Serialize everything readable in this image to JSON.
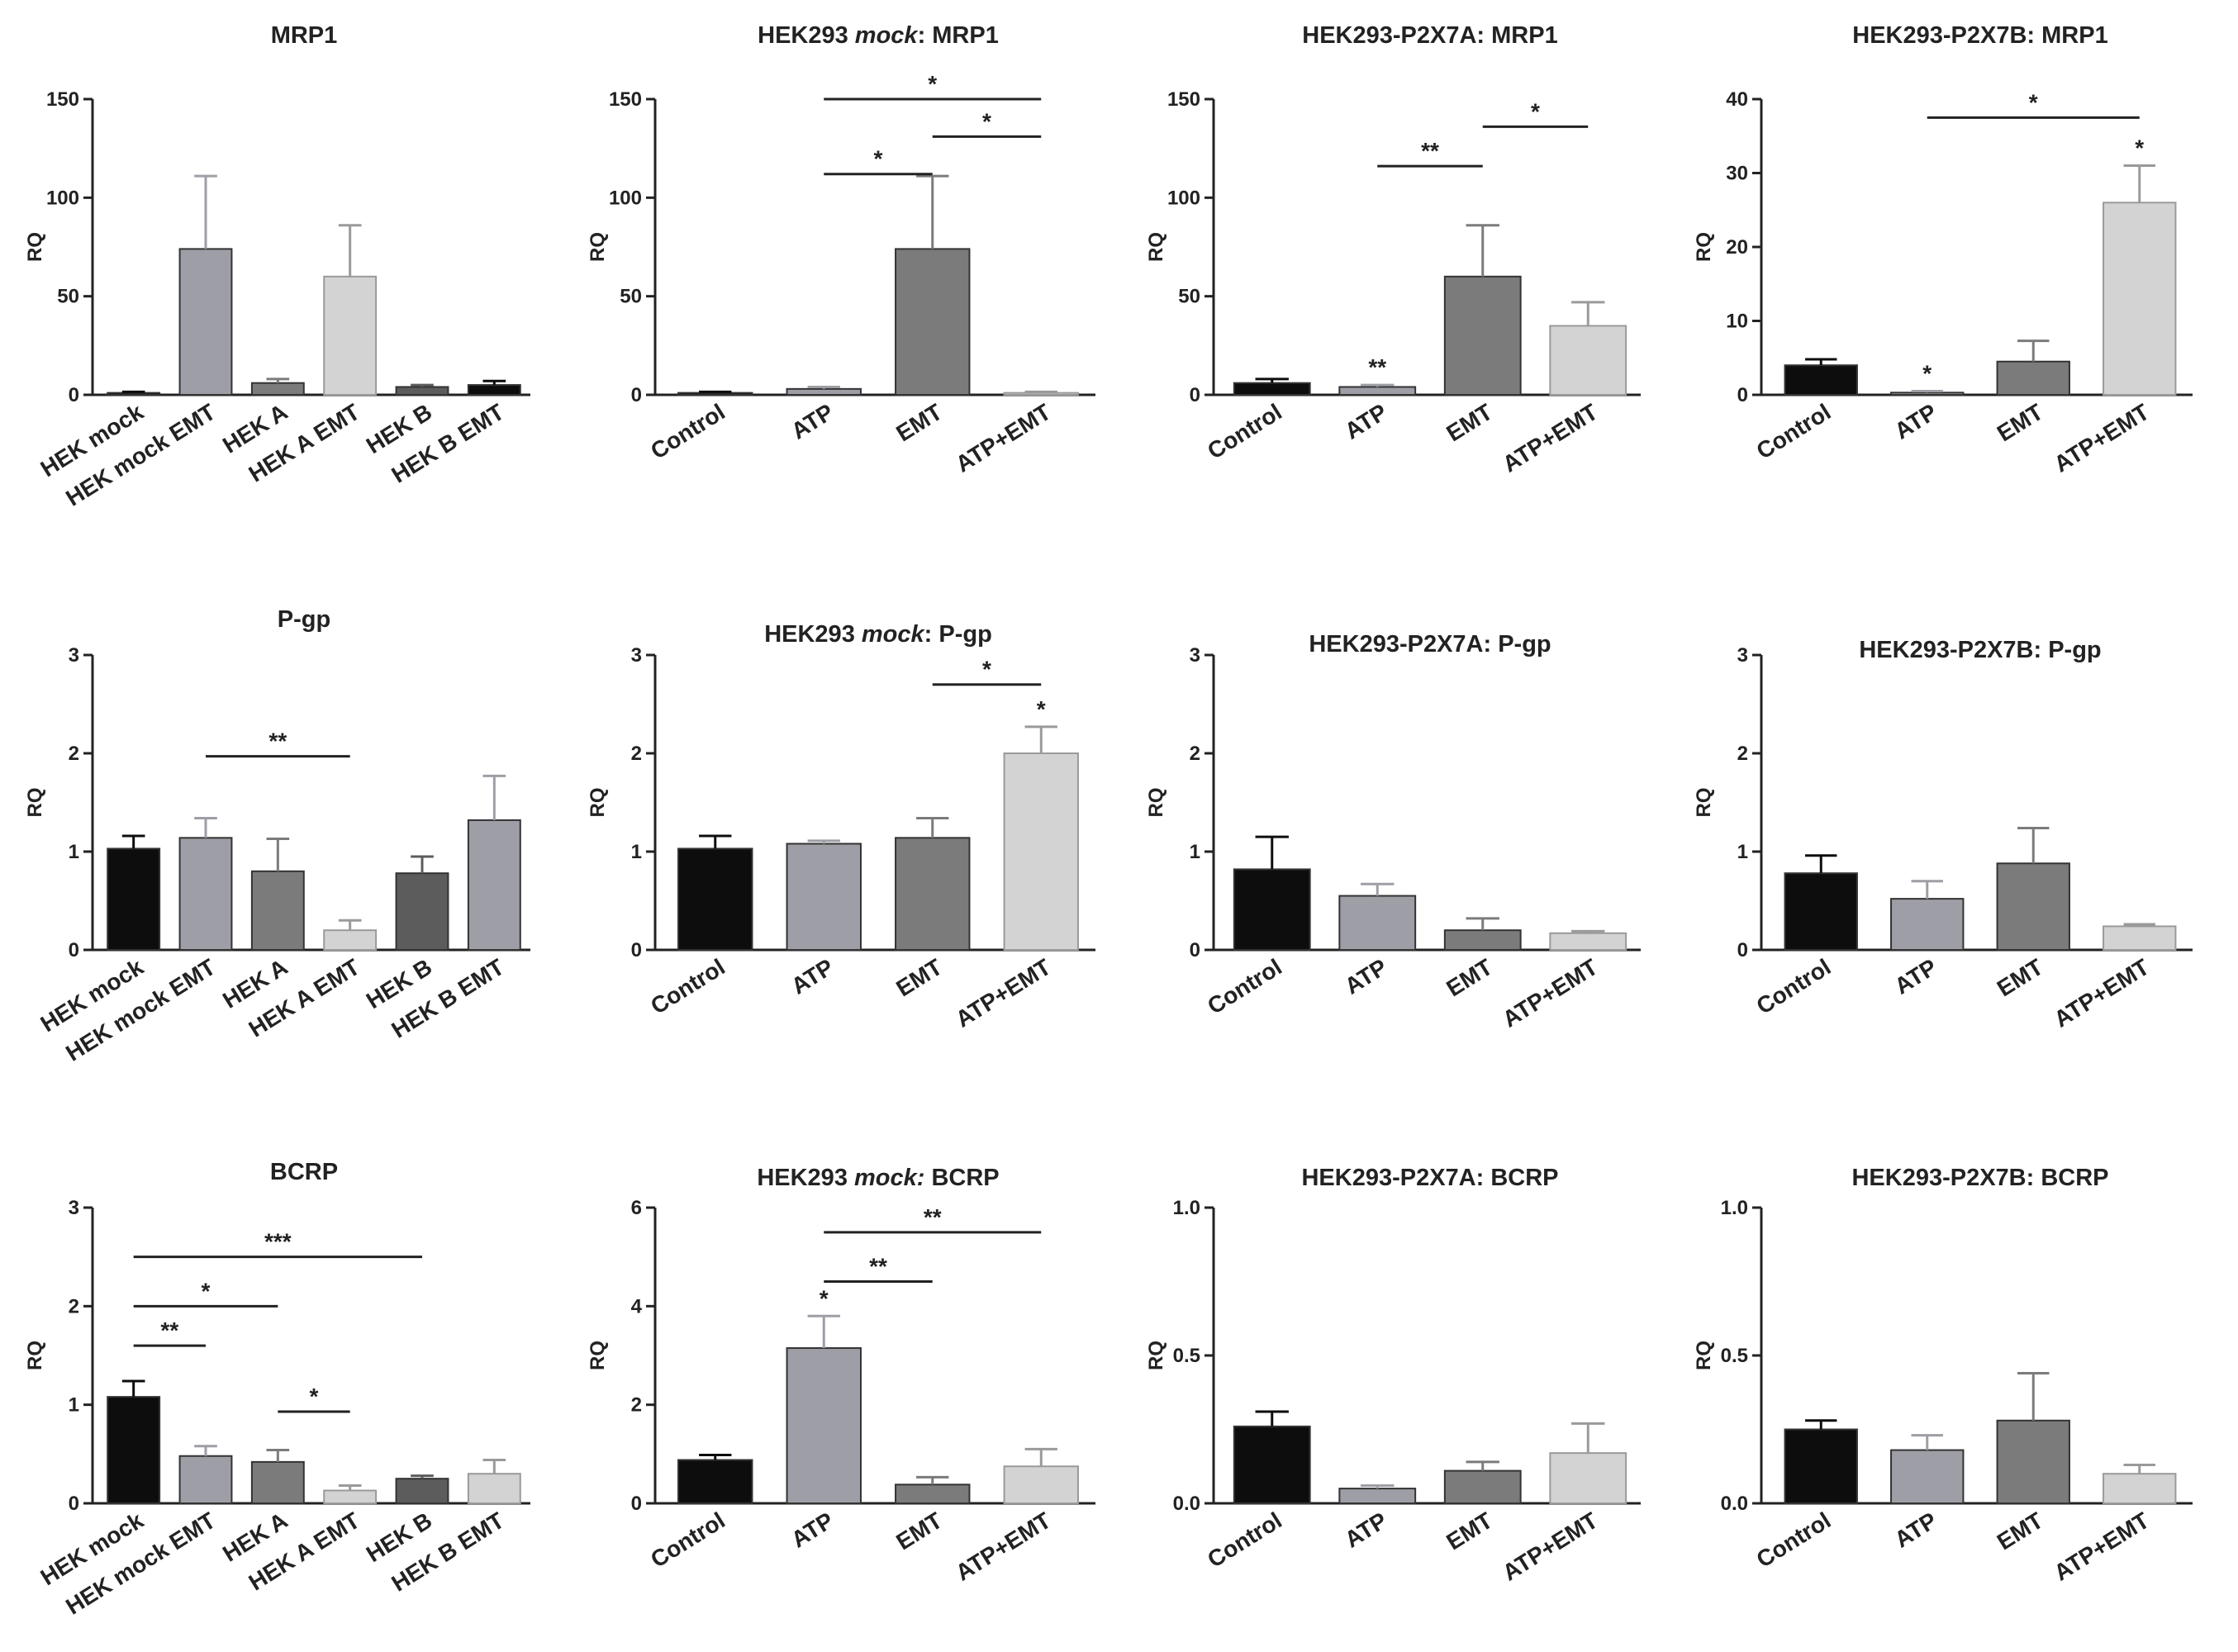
{
  "figure": {
    "colors": {
      "black": "#0d0d0d",
      "light_gray": "#d3d3d3",
      "mid_gray": "#9e9ea6",
      "dark_gray": "#7b7b7b",
      "darker_gray": "#5c5c5c",
      "axis": "#222222"
    }
  },
  "chart_data": [
    {
      "type": "bar",
      "title": "MRP1",
      "ylabel": "RQ",
      "ylim": [
        0,
        150
      ],
      "yticks": [
        "0",
        "50",
        "100",
        "150"
      ],
      "categories": [
        "HEK mock",
        "HEK mock EMT",
        "HEK A",
        "HEK A EMT",
        "HEK B",
        "HEK B EMT"
      ],
      "values": [
        1,
        74,
        6,
        60,
        4,
        5
      ],
      "errors": [
        0.5,
        37,
        2,
        26,
        1,
        2
      ],
      "colors": [
        "#0d0d0d",
        "#9e9ea6",
        "#7b7b7b",
        "#d3d3d3",
        "#5c5c5c",
        "#0d0d0d"
      ],
      "annotations": []
    },
    {
      "type": "bar",
      "title_parts": [
        {
          "text": "HEK293 ",
          "italic": false
        },
        {
          "text": "mock",
          "italic": true
        },
        {
          "text": ": MRP1",
          "italic": false
        }
      ],
      "ylabel": "RQ",
      "ylim": [
        0,
        150
      ],
      "yticks": [
        "0",
        "50",
        "100",
        "150"
      ],
      "categories": [
        "Control",
        "ATP",
        "EMT",
        "ATP+EMT"
      ],
      "values": [
        1,
        3,
        74,
        1
      ],
      "errors": [
        0.5,
        1,
        37,
        0.5
      ],
      "colors": [
        "#0d0d0d",
        "#9e9ea6",
        "#7b7b7b",
        "#d3d3d3"
      ],
      "annotations": [
        {
          "from": 1,
          "to": 3,
          "level": 150,
          "label": "*"
        },
        {
          "from": 2,
          "to": 3,
          "level": 131,
          "label": "*"
        },
        {
          "from": 1,
          "to": 2,
          "level": 112,
          "label": "*"
        }
      ]
    },
    {
      "type": "bar",
      "title": "HEK293-P2X7A: MRP1",
      "ylabel": "RQ",
      "ylim": [
        0,
        150
      ],
      "yticks": [
        "0",
        "50",
        "100",
        "150"
      ],
      "categories": [
        "Control",
        "ATP",
        "EMT",
        "ATP+EMT"
      ],
      "values": [
        6,
        4,
        60,
        35
      ],
      "errors": [
        2,
        1,
        26,
        12
      ],
      "colors": [
        "#0d0d0d",
        "#9e9ea6",
        "#7b7b7b",
        "#d3d3d3"
      ],
      "bar_labels": [
        {
          "index": 1,
          "label": "**"
        }
      ],
      "annotations": [
        {
          "from": 2,
          "to": 3,
          "level": 136,
          "label": "*"
        },
        {
          "from": 1,
          "to": 2,
          "level": 116,
          "label": "**"
        }
      ]
    },
    {
      "type": "bar",
      "title": "HEK293-P2X7B: MRP1",
      "ylabel": "RQ",
      "ylim": [
        0,
        40
      ],
      "yticks": [
        "0",
        "10",
        "20",
        "30",
        "40"
      ],
      "categories": [
        "Control",
        "ATP",
        "EMT",
        "ATP+EMT"
      ],
      "values": [
        4,
        0.3,
        4.5,
        26
      ],
      "errors": [
        0.8,
        0.2,
        2.8,
        5
      ],
      "colors": [
        "#0d0d0d",
        "#9e9ea6",
        "#7b7b7b",
        "#d3d3d3"
      ],
      "bar_labels": [
        {
          "index": 1,
          "label": "*"
        },
        {
          "index": 3,
          "label": "*"
        }
      ],
      "annotations": [
        {
          "from": 1,
          "to": 3,
          "level": 37.5,
          "label": "*"
        }
      ]
    },
    {
      "type": "bar",
      "title": "P-gp",
      "ylabel": "RQ",
      "ylim": [
        0,
        3
      ],
      "yticks": [
        "0",
        "1",
        "2",
        "3"
      ],
      "categories": [
        "HEK mock",
        "HEK mock EMT",
        "HEK A",
        "HEK A EMT",
        "HEK B",
        "HEK B EMT"
      ],
      "values": [
        1.03,
        1.14,
        0.8,
        0.2,
        0.78,
        1.32
      ],
      "errors": [
        0.13,
        0.2,
        0.33,
        0.1,
        0.17,
        0.45
      ],
      "colors": [
        "#0d0d0d",
        "#9e9ea6",
        "#7b7b7b",
        "#d3d3d3",
        "#5c5c5c",
        "#9e9ea6"
      ],
      "annotations": [
        {
          "from": 1,
          "to": 3,
          "level": 1.97,
          "label": "**"
        }
      ]
    },
    {
      "type": "bar",
      "title_parts": [
        {
          "text": "HEK293 ",
          "italic": false
        },
        {
          "text": "mock",
          "italic": true
        },
        {
          "text": ": P-gp",
          "italic": false
        }
      ],
      "ylabel": "RQ",
      "ylim": [
        0,
        3
      ],
      "yticks": [
        "0",
        "1",
        "2",
        "3"
      ],
      "categories": [
        "Control",
        "ATP",
        "EMT",
        "ATP+EMT"
      ],
      "values": [
        1.03,
        1.08,
        1.14,
        2.0
      ],
      "errors": [
        0.13,
        0.03,
        0.2,
        0.27
      ],
      "colors": [
        "#0d0d0d",
        "#9e9ea6",
        "#7b7b7b",
        "#d3d3d3"
      ],
      "bar_labels": [
        {
          "index": 3,
          "label": "*"
        }
      ],
      "annotations": [
        {
          "from": 2,
          "to": 3,
          "level": 2.7,
          "label": "*"
        }
      ]
    },
    {
      "type": "bar",
      "title": "HEK293-P2X7A: P-gp",
      "ylabel": "RQ",
      "ylim": [
        0,
        3
      ],
      "yticks": [
        "0",
        "1",
        "2",
        "3"
      ],
      "categories": [
        "Control",
        "ATP",
        "EMT",
        "ATP+EMT"
      ],
      "values": [
        0.82,
        0.55,
        0.2,
        0.17
      ],
      "errors": [
        0.33,
        0.12,
        0.12,
        0.02
      ],
      "colors": [
        "#0d0d0d",
        "#9e9ea6",
        "#7b7b7b",
        "#d3d3d3"
      ],
      "annotations": []
    },
    {
      "type": "bar",
      "title": "HEK293-P2X7B: P-gp",
      "ylabel": "RQ",
      "ylim": [
        0,
        3
      ],
      "yticks": [
        "0",
        "1",
        "2",
        "3"
      ],
      "categories": [
        "Control",
        "ATP",
        "EMT",
        "ATP+EMT"
      ],
      "values": [
        0.78,
        0.52,
        0.88,
        0.24
      ],
      "errors": [
        0.18,
        0.18,
        0.36,
        0.02
      ],
      "colors": [
        "#0d0d0d",
        "#9e9ea6",
        "#7b7b7b",
        "#d3d3d3"
      ],
      "annotations": []
    },
    {
      "type": "bar",
      "title": "BCRP",
      "ylabel": "RQ",
      "ylim": [
        0,
        3
      ],
      "yticks": [
        "0",
        "1",
        "2",
        "3"
      ],
      "categories": [
        "HEK mock",
        "HEK mock EMT",
        "HEK A",
        "HEK A EMT",
        "HEK B",
        "HEK B EMT"
      ],
      "values": [
        1.08,
        0.48,
        0.42,
        0.13,
        0.25,
        0.3
      ],
      "errors": [
        0.16,
        0.1,
        0.12,
        0.05,
        0.03,
        0.14
      ],
      "colors": [
        "#0d0d0d",
        "#9e9ea6",
        "#7b7b7b",
        "#d3d3d3",
        "#5c5c5c",
        "#d3d3d3"
      ],
      "annotations": [
        {
          "from": 0,
          "to": 4,
          "level": 2.5,
          "label": "***"
        },
        {
          "from": 0,
          "to": 2,
          "level": 2.0,
          "label": "*"
        },
        {
          "from": 0,
          "to": 1,
          "level": 1.6,
          "label": "**"
        },
        {
          "from": 2,
          "to": 3,
          "level": 0.93,
          "label": "*"
        }
      ]
    },
    {
      "type": "bar",
      "title_parts": [
        {
          "text": "HEK293 ",
          "italic": false
        },
        {
          "text": "mock:",
          "italic": true
        },
        {
          "text": " BCRP",
          "italic": false
        }
      ],
      "ylabel": "RQ",
      "ylim": [
        0,
        6
      ],
      "yticks": [
        "0",
        "2",
        "4",
        "6"
      ],
      "categories": [
        "Control",
        "ATP",
        "EMT",
        "ATP+EMT"
      ],
      "values": [
        0.88,
        3.15,
        0.38,
        0.75
      ],
      "errors": [
        0.1,
        0.65,
        0.15,
        0.35
      ],
      "colors": [
        "#0d0d0d",
        "#9e9ea6",
        "#7b7b7b",
        "#d3d3d3"
      ],
      "bar_labels": [
        {
          "index": 1,
          "label": "*"
        }
      ],
      "annotations": [
        {
          "from": 1,
          "to": 3,
          "level": 5.5,
          "label": "**"
        },
        {
          "from": 1,
          "to": 2,
          "level": 4.5,
          "label": "**"
        }
      ]
    },
    {
      "type": "bar",
      "title": "HEK293-P2X7A: BCRP",
      "ylabel": "RQ",
      "ylim": [
        0,
        1.0
      ],
      "yticks": [
        "0.0",
        "0.5",
        "1.0"
      ],
      "categories": [
        "Control",
        "ATP",
        "EMT",
        "ATP+EMT"
      ],
      "values": [
        0.26,
        0.05,
        0.11,
        0.17
      ],
      "errors": [
        0.05,
        0.01,
        0.03,
        0.1
      ],
      "colors": [
        "#0d0d0d",
        "#9e9ea6",
        "#7b7b7b",
        "#d3d3d3"
      ],
      "annotations": []
    },
    {
      "type": "bar",
      "title": "HEK293-P2X7B: BCRP",
      "ylabel": "RQ",
      "ylim": [
        0,
        1.0
      ],
      "yticks": [
        "0.0",
        "0.5",
        "1.0"
      ],
      "categories": [
        "Control",
        "ATP",
        "EMT",
        "ATP+EMT"
      ],
      "values": [
        0.25,
        0.18,
        0.28,
        0.1
      ],
      "errors": [
        0.03,
        0.05,
        0.16,
        0.03
      ],
      "colors": [
        "#0d0d0d",
        "#9e9ea6",
        "#7b7b7b",
        "#d3d3d3"
      ],
      "annotations": []
    }
  ]
}
